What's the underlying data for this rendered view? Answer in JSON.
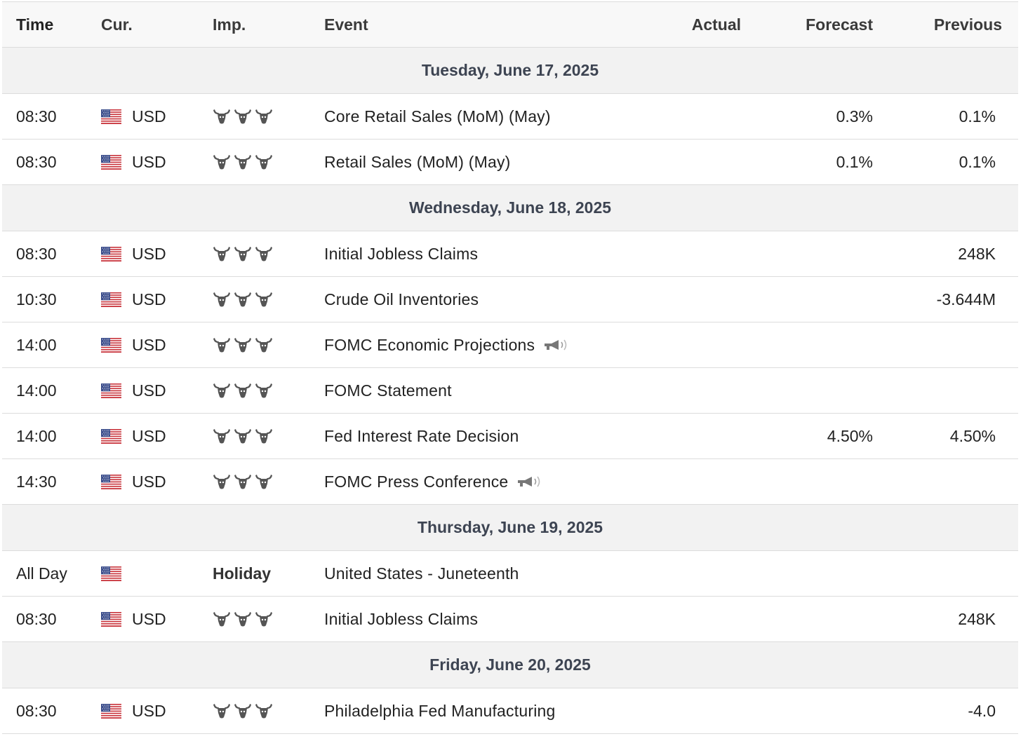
{
  "header": {
    "time": "Time",
    "currency": "Cur.",
    "importance": "Imp.",
    "event": "Event",
    "actual": "Actual",
    "forecast": "Forecast",
    "previous": "Previous"
  },
  "sections": [
    {
      "day": "Tuesday, June 17, 2025",
      "rows": [
        {
          "time": "08:30",
          "currency": "USD",
          "importance": 3,
          "event": "Core Retail Sales (MoM) (May)",
          "actual": "",
          "forecast": "0.3%",
          "previous": "0.1%",
          "speech": false
        },
        {
          "time": "08:30",
          "currency": "USD",
          "importance": 3,
          "event": "Retail Sales (MoM) (May)",
          "actual": "",
          "forecast": "0.1%",
          "previous": "0.1%",
          "speech": false
        }
      ]
    },
    {
      "day": "Wednesday, June 18, 2025",
      "rows": [
        {
          "time": "08:30",
          "currency": "USD",
          "importance": 3,
          "event": "Initial Jobless Claims",
          "actual": "",
          "forecast": "",
          "previous": "248K",
          "speech": false
        },
        {
          "time": "10:30",
          "currency": "USD",
          "importance": 3,
          "event": "Crude Oil Inventories",
          "actual": "",
          "forecast": "",
          "previous": "-3.644M",
          "speech": false
        },
        {
          "time": "14:00",
          "currency": "USD",
          "importance": 3,
          "event": "FOMC Economic Projections",
          "actual": "",
          "forecast": "",
          "previous": "",
          "speech": true
        },
        {
          "time": "14:00",
          "currency": "USD",
          "importance": 3,
          "event": "FOMC Statement",
          "actual": "",
          "forecast": "",
          "previous": "",
          "speech": false
        },
        {
          "time": "14:00",
          "currency": "USD",
          "importance": 3,
          "event": "Fed Interest Rate Decision",
          "actual": "",
          "forecast": "4.50%",
          "previous": "4.50%",
          "speech": false
        },
        {
          "time": "14:30",
          "currency": "USD",
          "importance": 3,
          "event": "FOMC Press Conference",
          "actual": "",
          "forecast": "",
          "previous": "",
          "speech": true
        }
      ]
    },
    {
      "day": "Thursday, June 19, 2025",
      "rows": [
        {
          "time": "All Day",
          "currency": "",
          "importance": 0,
          "holiday_label": "Holiday",
          "event": "United States - Juneteenth",
          "actual": "",
          "forecast": "",
          "previous": "",
          "speech": false
        },
        {
          "time": "08:30",
          "currency": "USD",
          "importance": 3,
          "event": "Initial Jobless Claims",
          "actual": "",
          "forecast": "",
          "previous": "248K",
          "speech": false
        }
      ]
    },
    {
      "day": "Friday, June 20, 2025",
      "rows": [
        {
          "time": "08:30",
          "currency": "USD",
          "importance": 3,
          "event": "Philadelphia Fed Manufacturing",
          "actual": "",
          "forecast": "",
          "previous": "-4.0",
          "speech": false
        }
      ]
    }
  ],
  "icons": {
    "flag": "us-flag-icon",
    "importance": "bull-icon",
    "speech": "speaker-icon"
  },
  "colors": {
    "header_bg": "#f8f8f8",
    "day_bg": "#f2f2f2",
    "border": "#dcdcdc",
    "bull": "#555555"
  }
}
